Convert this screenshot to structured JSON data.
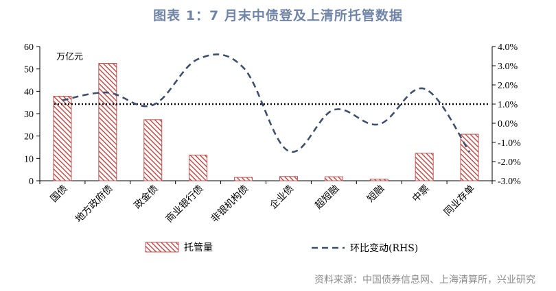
{
  "title": "图表 1：7 月末中债登及上清所托管数据",
  "source": "资料来源：中国债券信息网、上海清算所，兴业研究",
  "chart_data": {
    "type": "bar",
    "unit_label": "万亿元",
    "categories": [
      "国债",
      "地方政府债",
      "政金债",
      "商业银行债",
      "非银机构债",
      "企业债",
      "超短融",
      "短融",
      "中票",
      "同业存单"
    ],
    "series": [
      {
        "name": "托管量",
        "type": "bar",
        "axis": "left",
        "values": [
          37.8,
          52.5,
          27.3,
          11.5,
          1.5,
          1.9,
          1.8,
          0.7,
          12.3,
          20.8
        ]
      },
      {
        "name": "环比变动(RHS)",
        "type": "line",
        "axis": "right",
        "values": [
          1.2,
          1.6,
          0.95,
          3.35,
          2.9,
          -1.45,
          0.7,
          -0.05,
          1.8,
          -1.5
        ]
      }
    ],
    "reference_line": {
      "axis": "right",
      "value": 1.0
    },
    "y_left": {
      "ylim": [
        0,
        60
      ],
      "ticks": [
        "0",
        "10",
        "20",
        "30",
        "40",
        "50",
        "60"
      ]
    },
    "y_right": {
      "ylim": [
        -3,
        4
      ],
      "ticks": [
        "-3.0%",
        "-2.0%",
        "-1.0%",
        "0.0%",
        "1.0%",
        "2.0%",
        "3.0%",
        "4.0%"
      ]
    },
    "legend": {
      "position": "bottom",
      "bar_label": "托管量",
      "line_label": "环比变动(RHS)"
    },
    "colors": {
      "bar_stripe": "#c0504d",
      "line": "#3d4f6b",
      "title": "#6f84a6"
    }
  }
}
